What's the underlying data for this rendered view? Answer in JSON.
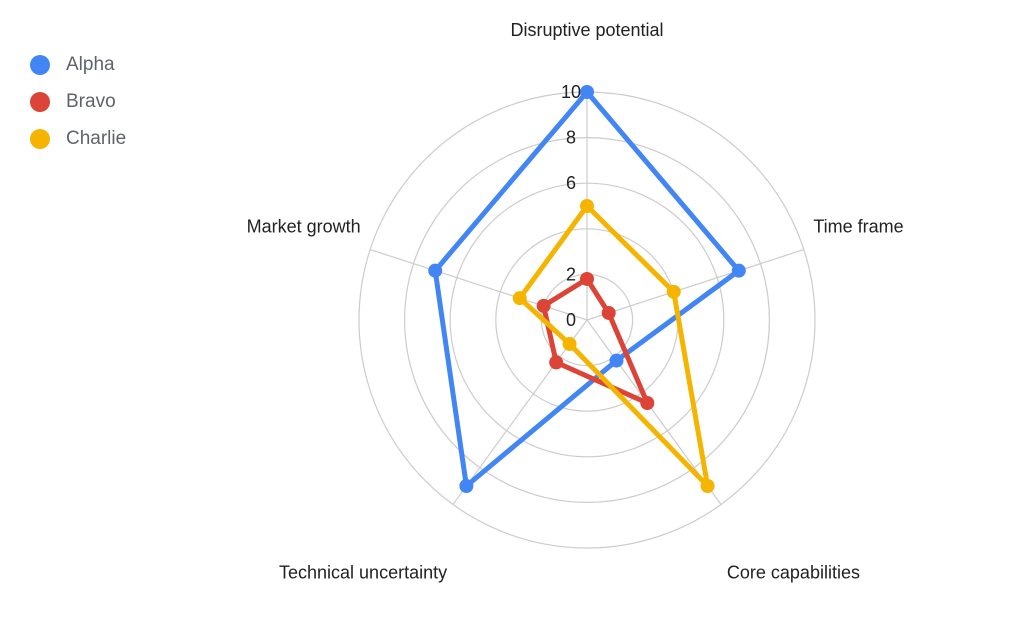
{
  "chart_data": {
    "type": "radar",
    "axes": [
      "Disruptive potential",
      "Time frame",
      "Core capabilities",
      "Technical uncertainty",
      "Market growth"
    ],
    "range": [
      0,
      10
    ],
    "ticks": [
      0,
      2,
      4,
      6,
      8,
      10
    ],
    "tick_labels": [
      "0",
      "2",
      "",
      "6",
      "8",
      "10"
    ],
    "grid": true,
    "legend_position": "top-left",
    "series": [
      {
        "name": "Alpha",
        "color": "#4285f4",
        "values": [
          10,
          7,
          2.2,
          9,
          7
        ]
      },
      {
        "name": "Bravo",
        "color": "#db4437",
        "values": [
          1.8,
          1,
          4.5,
          2.3,
          2
        ]
      },
      {
        "name": "Charlie",
        "color": "#f4b400",
        "values": [
          5,
          4,
          9,
          1.3,
          3.1
        ]
      }
    ]
  }
}
